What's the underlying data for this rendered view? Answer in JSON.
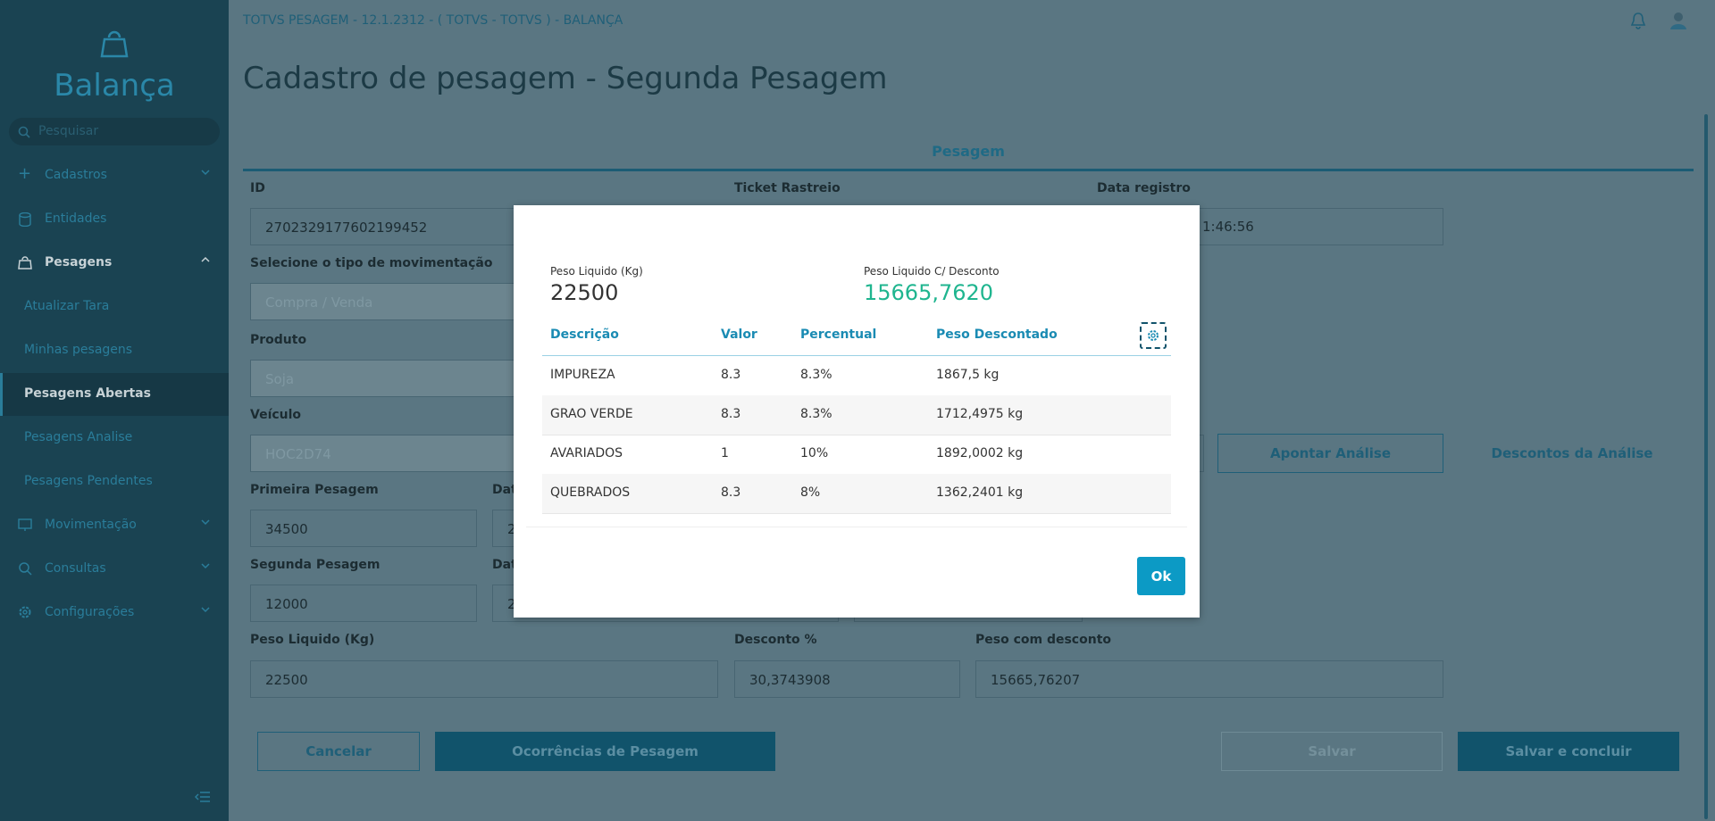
{
  "header": {
    "app": "TOTVS PESAGEM - 12.1.2312 - ( TOTVS - TOTVS ) - BALANÇA",
    "title": "Cadastro de pesagem - Segunda Pesagem"
  },
  "sidebar": {
    "brand": "Balança",
    "search_placeholder": "Pesquisar",
    "menu": [
      "Cadastros",
      "Entidades",
      "Pesagens",
      "Atualizar Tara",
      "Minhas pesagens",
      "Pesagens Abertas",
      "Pesagens Analise",
      "Pesagens Pendentes",
      "Movimentação",
      "Consultas",
      "Configurações"
    ]
  },
  "tab": "Pesagem",
  "form": {
    "id": {
      "label": "ID",
      "value": "2702329177602199452"
    },
    "ticket": {
      "label": "Ticket Rastreio"
    },
    "data_registro": {
      "label": "Data registro",
      "value": "1:46:56"
    },
    "tipo": {
      "label": "Selecione o tipo de movimentação",
      "placeholder": "Compra / Venda"
    },
    "produto": {
      "label": "Produto",
      "value": "Soja"
    },
    "veiculo": {
      "label": "Veículo",
      "value": "HOC2D74"
    },
    "primeira": {
      "label": "Primeira Pesagem",
      "value": "34500"
    },
    "data1": {
      "label": "Dat",
      "value": "2"
    },
    "segunda": {
      "label": "Segunda Pesagem",
      "value": "12000"
    },
    "data2": {
      "label": "Dat",
      "value": "2"
    },
    "peso_liquido": {
      "label": "Peso Liquido (Kg)",
      "value": "22500"
    },
    "desconto": {
      "label": "Desconto %",
      "value": "30,3743908"
    },
    "peso_desconto": {
      "label": "Peso com desconto",
      "value": "15665,76207"
    }
  },
  "buttons": {
    "apontar": "Apontar Análise",
    "descontos": "Descontos da Análise",
    "cancelar": "Cancelar",
    "ocorrencias": "Ocorrências de Pesagem",
    "salvar": "Salvar",
    "salvar_concluir": "Salvar e concluir"
  },
  "modal": {
    "peso_liquido_label": "Peso Liquido (Kg)",
    "peso_liquido": "22500",
    "peso_desconto_label": "Peso Liquido C/ Desconto",
    "peso_desconto": "15665,7620",
    "table": {
      "columns": [
        "Descrição",
        "Valor",
        "Percentual",
        "Peso Descontado"
      ],
      "rows": [
        [
          "IMPUREZA",
          "8.3",
          "8.3%",
          "1867,5 kg"
        ],
        [
          "GRAO VERDE",
          "8.3",
          "8.3%",
          "1712,4975 kg"
        ],
        [
          "AVARIADOS",
          "1",
          "10%",
          "1892,0002 kg"
        ],
        [
          "QUEBRADOS",
          "8.3",
          "8%",
          "1362,2401 kg"
        ]
      ]
    },
    "ok": "Ok"
  }
}
